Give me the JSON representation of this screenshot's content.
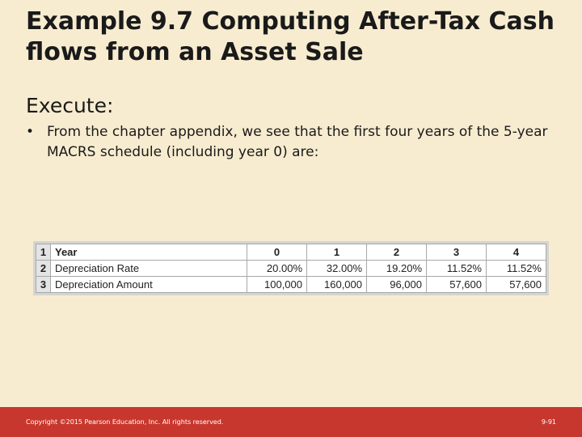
{
  "slide": {
    "title": "Example 9.7 Computing After-Tax Cash flows from an Asset Sale",
    "subheading": "Execute:",
    "bullets": [
      "From the chapter appendix, we see that the first four years of the 5-year MACRS schedule (including year 0) are:"
    ],
    "bullet_symbol": "•"
  },
  "spreadsheet": {
    "row_numbers": [
      "1",
      "2",
      "3"
    ],
    "rows": [
      {
        "label": "Year",
        "values": [
          "0",
          "1",
          "2",
          "3",
          "4"
        ]
      },
      {
        "label": "Depreciation Rate",
        "values": [
          "20.00%",
          "32.00%",
          "19.20%",
          "11.52%",
          "11.52%"
        ]
      },
      {
        "label": "Depreciation Amount",
        "values": [
          "100,000",
          "160,000",
          "96,000",
          "57,600",
          "57,600"
        ]
      }
    ]
  },
  "footer": {
    "copyright": "Copyright ©2015 Pearson Education, Inc. All rights reserved.",
    "slide_number": "9-91",
    "color": "#c8372d"
  }
}
